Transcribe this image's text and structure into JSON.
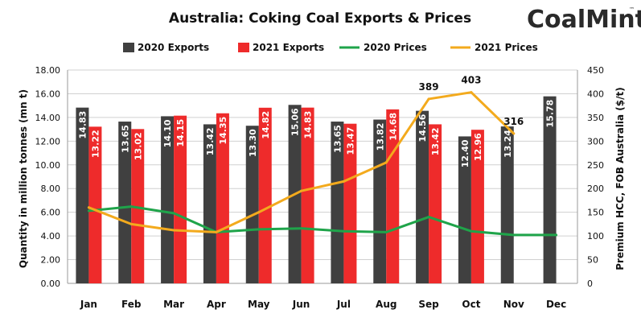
{
  "title": "Australia: Coking Coal Exports & Prices",
  "logo": {
    "text_a": "Coal",
    "text_b": "Mint",
    "mark": "™",
    "accent": "#e32227"
  },
  "legend": [
    "2020 Exports",
    "2021 Exports",
    "2020 Prices",
    "2021 Prices"
  ],
  "colors": {
    "exports_2020": "#404040",
    "exports_2021": "#ee2b2b",
    "prices_2020": "#1fa44a",
    "prices_2021": "#f3aa1d",
    "grid": "#d0d0d0"
  },
  "chart_data": {
    "type": "bar",
    "title": "Australia: Coking Coal Exports & Prices",
    "categories": [
      "Jan",
      "Feb",
      "Mar",
      "Apr",
      "May",
      "Jun",
      "Jul",
      "Aug",
      "Sep",
      "Oct",
      "Nov",
      "Dec"
    ],
    "ylabel": "Quantity in million tonnes (mn t)",
    "y2label": "Premium HCC, FOB Australia ($/t)",
    "ylim": [
      0,
      18
    ],
    "y2lim": [
      0,
      450
    ],
    "yticks": [
      "0.00",
      "2.00",
      "4.00",
      "6.00",
      "8.00",
      "10.00",
      "12.00",
      "14.00",
      "16.00",
      "18.00"
    ],
    "y2ticks": [
      "0",
      "50",
      "100",
      "150",
      "200",
      "250",
      "300",
      "350",
      "400",
      "450"
    ],
    "grid": true,
    "legend_position": "top",
    "series": [
      {
        "name": "2020 Exports",
        "kind": "bar",
        "axis": "left",
        "values": [
          14.83,
          13.65,
          14.1,
          13.42,
          13.3,
          15.06,
          13.65,
          13.82,
          14.56,
          12.4,
          13.24,
          15.78
        ],
        "labels": [
          "14.83",
          "13.65",
          "14.10",
          "13.42",
          "13.30",
          "15.06",
          "13.65",
          "13.82",
          "14.56",
          "12.40",
          "13.24",
          "15.78"
        ]
      },
      {
        "name": "2021 Exports",
        "kind": "bar",
        "axis": "left",
        "values": [
          13.22,
          13.02,
          14.15,
          14.35,
          14.82,
          14.83,
          13.47,
          14.68,
          13.42,
          12.96,
          null,
          null
        ],
        "labels": [
          "13.22",
          "13.02",
          "14.15",
          "14.35",
          "14.82",
          "14.83",
          "13.47",
          "14.68",
          "13.42",
          "12.96",
          "",
          ""
        ]
      },
      {
        "name": "2020 Prices",
        "kind": "line",
        "axis": "right",
        "values": [
          153,
          162,
          148,
          108,
          114,
          116,
          110,
          108,
          140,
          110,
          102,
          102
        ]
      },
      {
        "name": "2021 Prices",
        "kind": "line",
        "axis": "right",
        "values": [
          160,
          125,
          112,
          108,
          150,
          195,
          215,
          255,
          389,
          403,
          316,
          null
        ],
        "labels": [
          "",
          "",
          "",
          "",
          "",
          "",
          "",
          "",
          "389",
          "403",
          "316",
          ""
        ]
      }
    ]
  }
}
